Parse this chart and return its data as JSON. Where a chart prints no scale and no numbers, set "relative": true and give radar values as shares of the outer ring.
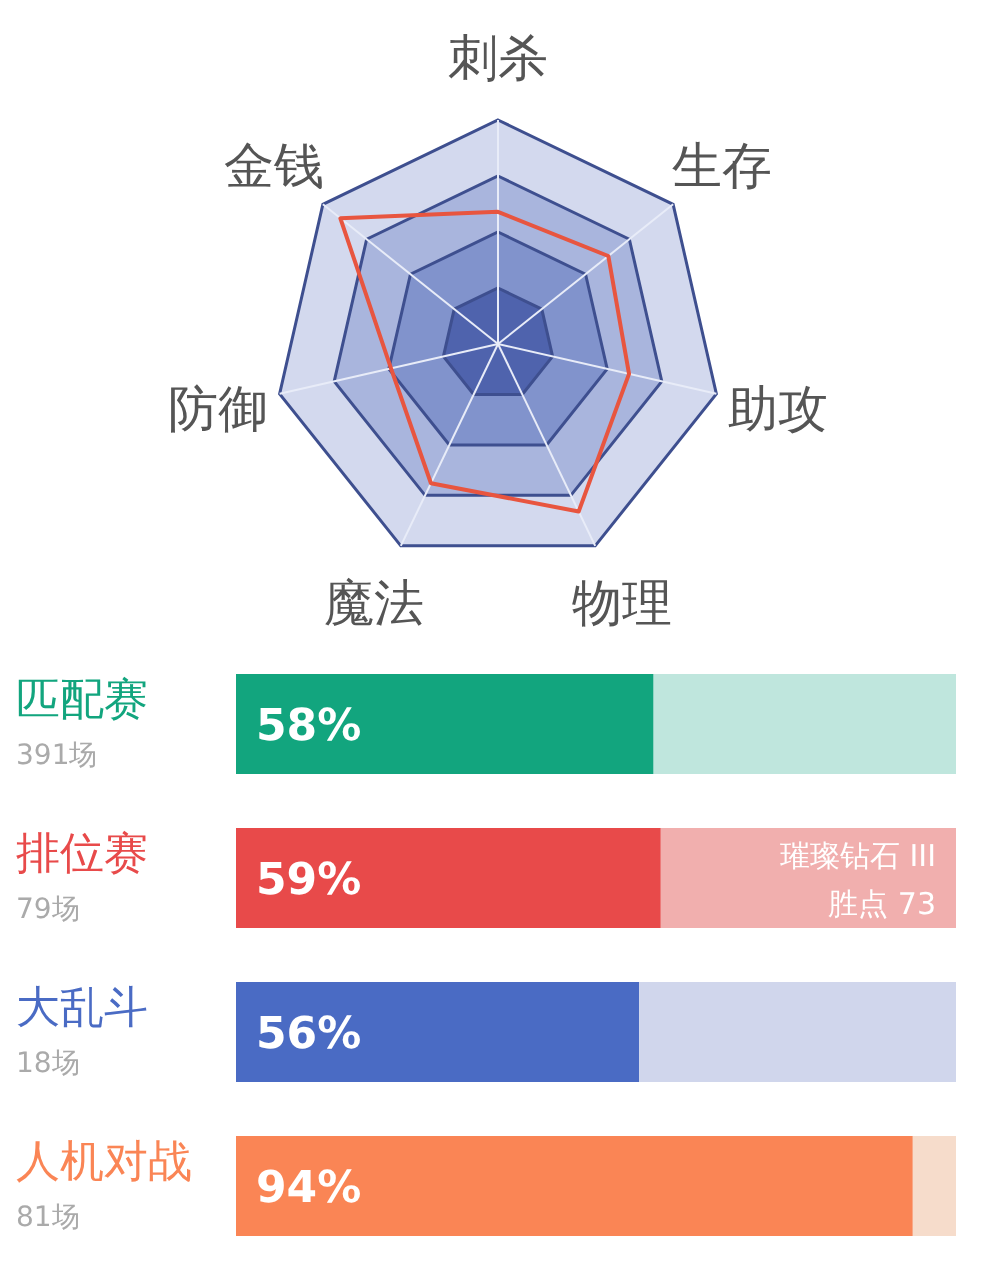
{
  "chart_data": [
    {
      "type": "radar",
      "categories": [
        "刺杀",
        "生存",
        "助攻",
        "物理",
        "魔法",
        "防御",
        "金钱"
      ],
      "relative": true,
      "grid": true,
      "marker": "none",
      "series": [
        {
          "color": "#e8553f",
          "values": [
            0.59,
            0.63,
            0.6,
            0.83,
            0.69,
            0.49,
            0.9
          ]
        }
      ]
    },
    {
      "type": "bar",
      "orientation": "horizontal",
      "stacked": true,
      "xlim": [
        0,
        100
      ],
      "tick_labels": false,
      "categories": [
        "匹配赛\n391场",
        "排位赛\n79场",
        "大乱斗\n18场",
        "人机对战\n81场"
      ],
      "series": [
        {
          "colors": [
            "#12a57e",
            "#e84a4a",
            "#4a6bc4",
            "#fa8555"
          ],
          "values": [
            58,
            59,
            56,
            94
          ],
          "value_labels": [
            "58%",
            "59%",
            "56%",
            "94%"
          ]
        },
        {
          "colors": [
            "#bfe6dd",
            "#f1afae",
            "#d0d6ec",
            "#f6dccb"
          ],
          "values": [
            42,
            41,
            44,
            6
          ]
        }
      ],
      "annotations": [
        "璀璨钻石 III\n胜点 73"
      ]
    }
  ]
}
